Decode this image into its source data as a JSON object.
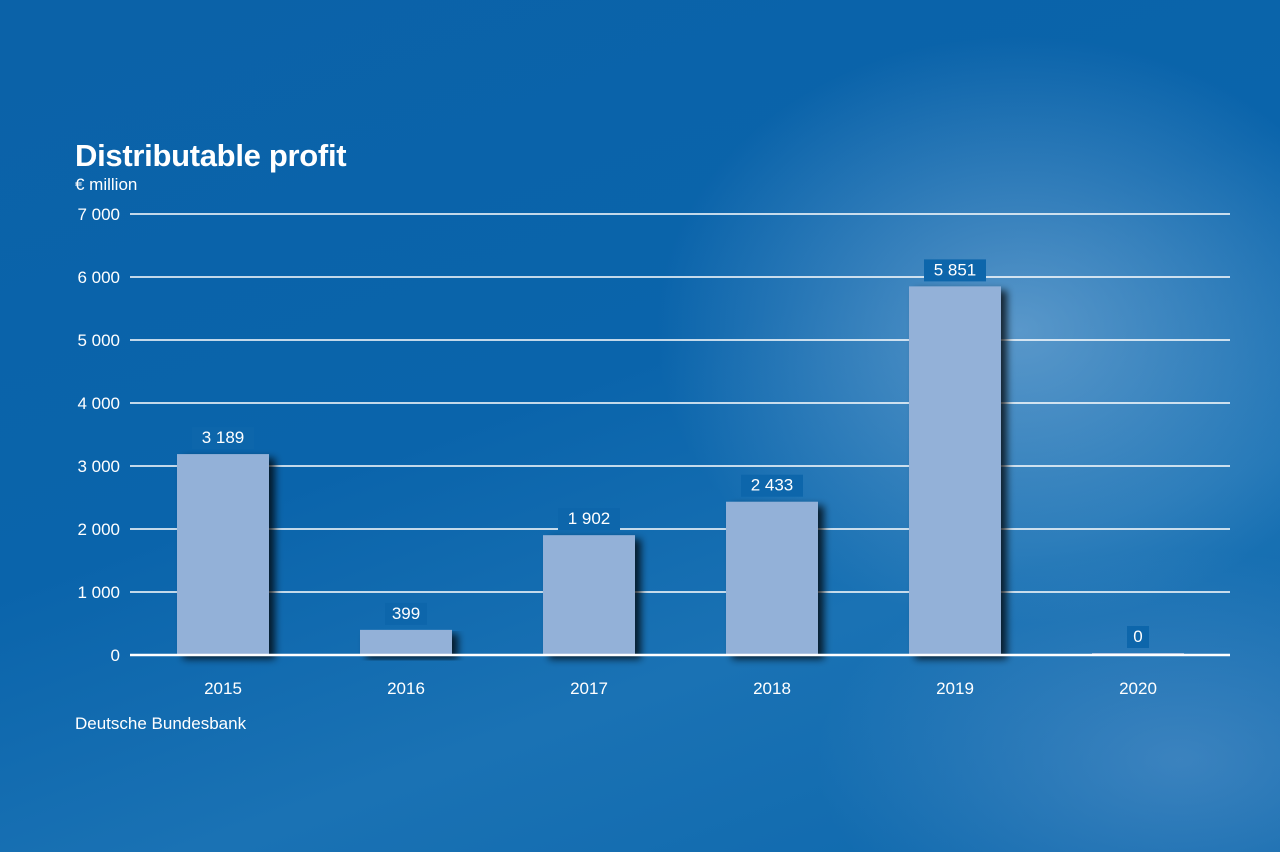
{
  "chart_data": {
    "type": "bar",
    "title": "Distributable profit",
    "unit_label": "€ million",
    "categories": [
      "2015",
      "2016",
      "2017",
      "2018",
      "2019",
      "2020"
    ],
    "values": [
      3189,
      399,
      1902,
      2433,
      5851,
      0
    ],
    "value_labels": [
      "3 189",
      "399",
      "1 902",
      "2 433",
      "5 851",
      "0"
    ],
    "y_ticks": [
      0,
      1000,
      2000,
      3000,
      4000,
      5000,
      6000,
      7000
    ],
    "y_tick_labels": [
      "0",
      "1 000",
      "2 000",
      "3 000",
      "4 000",
      "5 000",
      "6 000",
      "7 000"
    ],
    "ylim": [
      0,
      7000
    ],
    "grid": true,
    "legend": "none",
    "bar_color": "#93b1d8",
    "background_color": "#0a64ab",
    "source": "Deutsche Bundesbank"
  }
}
